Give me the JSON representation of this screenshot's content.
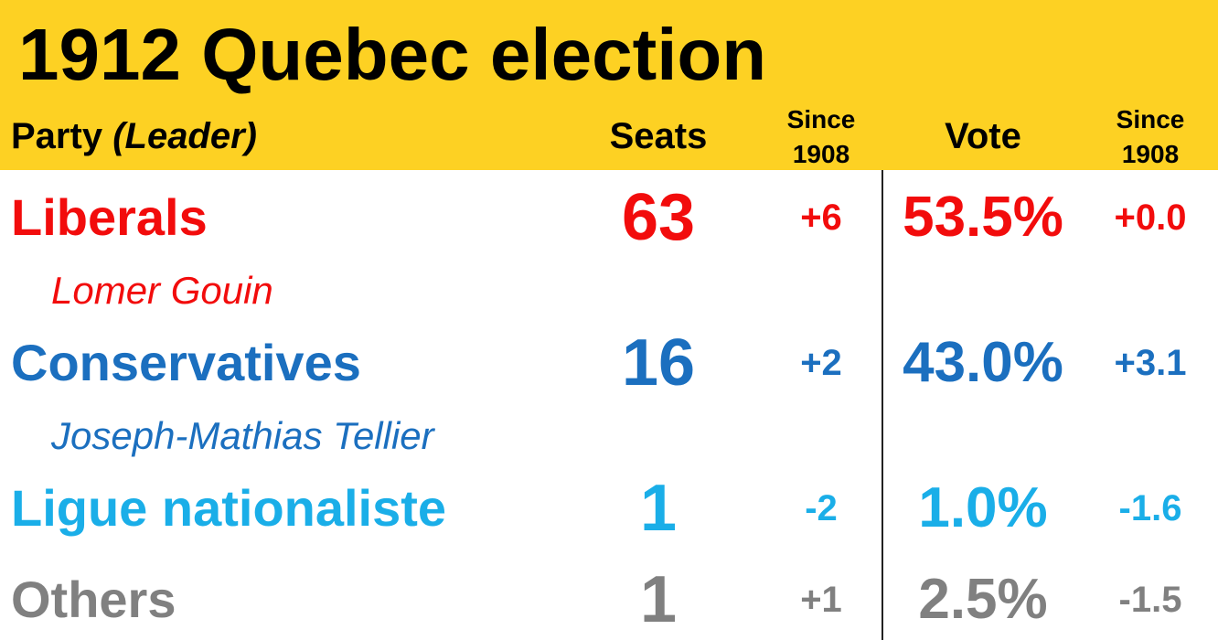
{
  "header": {
    "title": "1912 Quebec election"
  },
  "columns": {
    "party": "Party",
    "leader": "(Leader)",
    "seats": "Seats",
    "seats_change": [
      "Since",
      "1908"
    ],
    "vote": "Vote",
    "vote_change": [
      "Since",
      "1908"
    ]
  },
  "rows": [
    {
      "name": "Liberals",
      "leader": "Lomer Gouin",
      "seats": "63",
      "seats_change": "+6",
      "vote": "53.5%",
      "vote_change": "+0.0",
      "color": "#f20c0c"
    },
    {
      "name": "Conservatives",
      "leader": "Joseph-Mathias Tellier",
      "seats": "16",
      "seats_change": "+2",
      "vote": "43.0%",
      "vote_change": "+3.1",
      "color": "#1b6fbf"
    },
    {
      "name": "Ligue nationaliste",
      "seats": "1",
      "seats_change": "-2",
      "vote": "1.0%",
      "vote_change": "-1.6",
      "color": "#1aaee8"
    },
    {
      "name": "Others",
      "seats": "1",
      "seats_change": "+1",
      "vote": "2.5%",
      "vote_change": "-1.5",
      "color": "#808080"
    }
  ]
}
